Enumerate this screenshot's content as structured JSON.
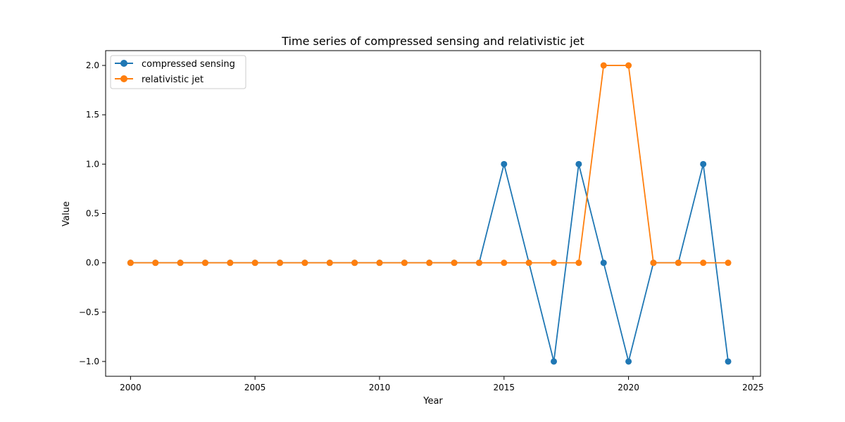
{
  "chart_data": {
    "type": "line",
    "title": "Time series of compressed sensing and relativistic jet",
    "xlabel": "Year",
    "ylabel": "Value",
    "xlim": [
      1999.0,
      2025.3
    ],
    "ylim": [
      -1.15,
      2.15
    ],
    "xticks": [
      2000,
      2005,
      2010,
      2015,
      2020,
      2025
    ],
    "yticks": [
      -1.0,
      -0.5,
      0.0,
      0.5,
      1.0,
      1.5,
      2.0
    ],
    "xtick_labels": [
      "2000",
      "2005",
      "2010",
      "2015",
      "2020",
      "2025"
    ],
    "ytick_labels": [
      "−1.0",
      "−0.5",
      "0.0",
      "0.5",
      "1.0",
      "1.5",
      "2.0"
    ],
    "grid": false,
    "legend_position": "top-left",
    "x": [
      2000,
      2001,
      2002,
      2003,
      2004,
      2005,
      2006,
      2007,
      2008,
      2009,
      2010,
      2011,
      2012,
      2013,
      2014,
      2015,
      2016,
      2017,
      2018,
      2019,
      2020,
      2021,
      2022,
      2023,
      2024
    ],
    "series": [
      {
        "name": "compressed sensing",
        "color": "#1f77b4",
        "values": [
          0,
          0,
          0,
          0,
          0,
          0,
          0,
          0,
          0,
          0,
          0,
          0,
          0,
          0,
          0,
          1,
          0,
          -1,
          1,
          0,
          -1,
          0,
          0,
          1,
          -1
        ]
      },
      {
        "name": "relativistic jet",
        "color": "#ff7f0e",
        "values": [
          0,
          0,
          0,
          0,
          0,
          0,
          0,
          0,
          0,
          0,
          0,
          0,
          0,
          0,
          0,
          0,
          0,
          0,
          0,
          2,
          2,
          0,
          0,
          0,
          0
        ]
      }
    ]
  }
}
